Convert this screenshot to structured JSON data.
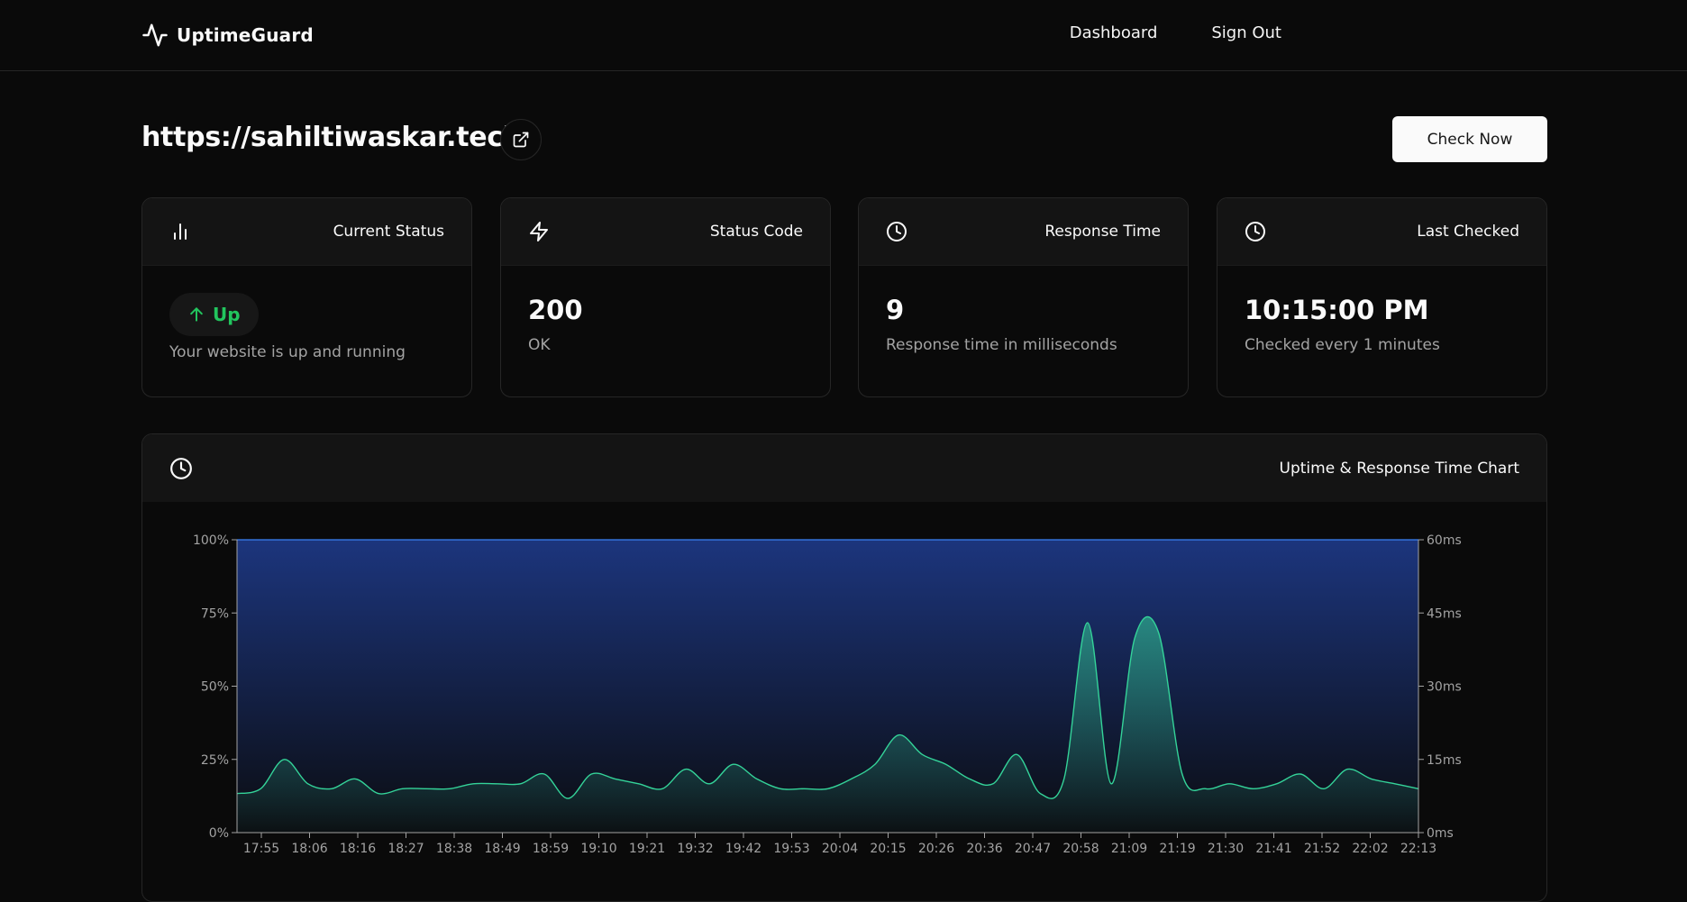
{
  "navbar": {
    "brand": "UptimeGuard",
    "links": [
      "Dashboard",
      "Sign Out"
    ]
  },
  "header": {
    "url": "https://sahiltiwaskar.tech/",
    "check_button": "Check Now"
  },
  "cards": {
    "status": {
      "title": "Current Status",
      "value": "Up",
      "sub": "Your website is up and running"
    },
    "code": {
      "title": "Status Code",
      "value": "200",
      "sub": "OK"
    },
    "response": {
      "title": "Response Time",
      "value": "9",
      "sub": "Response time in milliseconds"
    },
    "checked": {
      "title": "Last Checked",
      "value": "10:15:00 PM",
      "sub": "Checked every 1 minutes"
    }
  },
  "chart": {
    "title": "Uptime & Response Time Chart"
  },
  "colors": {
    "accent_green": "#22c55e",
    "response_line": "#34d399",
    "uptime_fill": "#1e3a8a",
    "uptime_line": "#3b82f6"
  },
  "chart_data": {
    "type": "area",
    "title": "Uptime & Response Time Chart",
    "y_left": {
      "ticks": [
        "0%",
        "25%",
        "50%",
        "75%",
        "100%"
      ],
      "range": [
        0,
        100
      ]
    },
    "y_right": {
      "ticks": [
        "0ms",
        "15ms",
        "30ms",
        "45ms",
        "60ms"
      ],
      "range": [
        0,
        60
      ]
    },
    "x_ticks": [
      "17:55",
      "18:06",
      "18:16",
      "18:27",
      "18:38",
      "18:49",
      "18:59",
      "19:10",
      "19:21",
      "19:32",
      "19:42",
      "19:53",
      "20:04",
      "20:15",
      "20:26",
      "20:36",
      "20:47",
      "20:58",
      "21:09",
      "21:19",
      "21:30",
      "21:41",
      "21:52",
      "22:02",
      "22:13"
    ],
    "series": [
      {
        "axis": "left",
        "values": [
          100,
          100,
          100,
          100,
          100,
          100,
          100,
          100,
          100,
          100,
          100,
          100,
          100,
          100,
          100,
          100,
          100,
          100,
          100,
          100,
          100,
          100,
          100,
          100,
          100
        ]
      },
      {
        "axis": "right",
        "values": [
          8,
          9,
          15,
          10,
          9,
          11,
          8,
          9,
          9,
          9,
          10,
          10,
          10,
          12,
          7,
          12,
          11,
          10,
          9,
          13,
          10,
          14,
          11,
          9,
          9,
          9,
          11,
          14,
          20,
          16,
          14,
          11,
          10,
          16,
          8,
          11,
          43,
          10,
          40,
          41,
          12,
          9,
          10,
          9,
          10,
          12,
          9,
          13,
          11,
          10,
          9
        ]
      }
    ]
  }
}
